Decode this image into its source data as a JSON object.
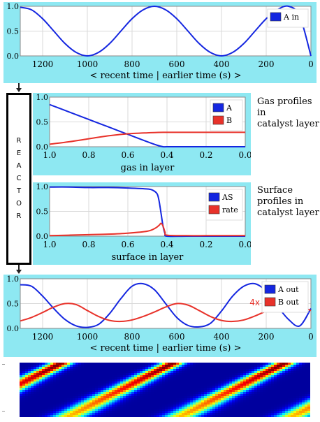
{
  "colors": {
    "panel_bg": "#8ee8f2",
    "blue": "#1426e0",
    "red": "#e8322a",
    "grid": "#d9d9d9"
  },
  "reactor": {
    "letters": [
      "R",
      "E",
      "A",
      "C",
      "T",
      "O",
      "R"
    ]
  },
  "labels": {
    "gas_profiles": [
      "Gas profiles",
      "in",
      "catalyst layer"
    ],
    "surface_profiles": [
      "Surface",
      "profiles in",
      "catalyst layer"
    ],
    "multiplier": "4x"
  },
  "chart_data": [
    {
      "type": "line",
      "id": "inlet",
      "xlabel": "< recent time | earlier time (s) >",
      "xlim": [
        1300,
        0
      ],
      "x_ticks": [
        "1200",
        "1000",
        "800",
        "600",
        "400",
        "200",
        "0"
      ],
      "ylim": [
        0,
        1
      ],
      "y_ticks": [
        "0.0",
        "0.5",
        "1.0"
      ],
      "grid": true,
      "legend": "top-right",
      "series": [
        {
          "name": "A in",
          "color": "blue",
          "x": [
            1300,
            1250,
            1200,
            1150,
            1100,
            1050,
            1000,
            950,
            900,
            850,
            800,
            750,
            700,
            650,
            600,
            550,
            500,
            450,
            400,
            350,
            300,
            250,
            200,
            150,
            100,
            50,
            0
          ],
          "y": [
            0.98,
            0.93,
            0.75,
            0.5,
            0.25,
            0.07,
            0.0,
            0.07,
            0.25,
            0.5,
            0.75,
            0.93,
            1.0,
            0.93,
            0.75,
            0.5,
            0.25,
            0.07,
            0.0,
            0.07,
            0.25,
            0.5,
            0.75,
            0.93,
            1.0,
            0.8,
            0.0
          ]
        }
      ]
    },
    {
      "type": "line",
      "id": "gas",
      "xlabel": "gas in layer",
      "xlim": [
        1.0,
        0.0
      ],
      "x_ticks": [
        "1.0",
        "0.8",
        "0.6",
        "0.4",
        "0.2",
        "0.0"
      ],
      "ylim": [
        0,
        1
      ],
      "y_ticks": [
        "0.0",
        "0.5",
        "1.0"
      ],
      "grid": true,
      "legend": "top-right",
      "series": [
        {
          "name": "A",
          "color": "blue",
          "x": [
            1.0,
            0.9,
            0.8,
            0.7,
            0.6,
            0.5,
            0.45,
            0.42,
            0.4,
            0.3,
            0.2,
            0.1,
            0.0
          ],
          "y": [
            0.85,
            0.7,
            0.55,
            0.4,
            0.25,
            0.1,
            0.03,
            0.0,
            0.0,
            0.0,
            0.0,
            0.0,
            0.0
          ]
        },
        {
          "name": "B",
          "color": "red",
          "x": [
            1.0,
            0.9,
            0.8,
            0.7,
            0.6,
            0.5,
            0.42,
            0.4,
            0.3,
            0.2,
            0.1,
            0.0
          ],
          "y": [
            0.05,
            0.1,
            0.16,
            0.22,
            0.26,
            0.28,
            0.29,
            0.29,
            0.29,
            0.29,
            0.29,
            0.29
          ]
        }
      ]
    },
    {
      "type": "line",
      "id": "surface",
      "xlabel": "surface in layer",
      "xlim": [
        1.0,
        0.0
      ],
      "x_ticks": [
        "1.0",
        "0.8",
        "0.6",
        "0.4",
        "0.2",
        "0.0"
      ],
      "ylim": [
        0,
        1
      ],
      "y_ticks": [
        "0.0",
        "0.5",
        "1.0"
      ],
      "grid": true,
      "legend": "top-right",
      "series": [
        {
          "name": "AS",
          "color": "blue",
          "x": [
            1.0,
            0.9,
            0.8,
            0.7,
            0.6,
            0.5,
            0.47,
            0.45,
            0.44,
            0.43,
            0.42,
            0.41,
            0.4,
            0.3,
            0.2,
            0.1,
            0.0
          ],
          "y": [
            0.99,
            0.99,
            0.98,
            0.98,
            0.97,
            0.95,
            0.92,
            0.85,
            0.7,
            0.45,
            0.2,
            0.05,
            0.0,
            0.0,
            0.0,
            0.0,
            0.0
          ]
        },
        {
          "name": "rate",
          "color": "red",
          "x": [
            1.0,
            0.9,
            0.8,
            0.7,
            0.6,
            0.5,
            0.46,
            0.44,
            0.43,
            0.42,
            0.41,
            0.4,
            0.3,
            0.2,
            0.1,
            0.0
          ],
          "y": [
            0.01,
            0.02,
            0.03,
            0.04,
            0.06,
            0.1,
            0.16,
            0.22,
            0.26,
            0.2,
            0.08,
            0.02,
            0.01,
            0.01,
            0.01,
            0.01
          ]
        }
      ]
    },
    {
      "type": "line",
      "id": "outlet",
      "xlabel": "< recent time | earlier time (s) >",
      "xlim": [
        1300,
        0
      ],
      "x_ticks": [
        "1200",
        "1000",
        "800",
        "600",
        "400",
        "200",
        "0"
      ],
      "ylim": [
        0,
        1
      ],
      "y_ticks": [
        "0.0",
        "0.5",
        "1.0"
      ],
      "grid": true,
      "legend": "top-right",
      "series": [
        {
          "name": "A out",
          "color": "blue",
          "x": [
            1300,
            1250,
            1200,
            1150,
            1100,
            1050,
            1000,
            950,
            900,
            850,
            800,
            750,
            700,
            650,
            600,
            550,
            500,
            450,
            400,
            350,
            300,
            250,
            200,
            150,
            100,
            50,
            0
          ],
          "y": [
            0.88,
            0.85,
            0.65,
            0.4,
            0.18,
            0.05,
            0.02,
            0.08,
            0.3,
            0.6,
            0.85,
            0.9,
            0.78,
            0.5,
            0.22,
            0.06,
            0.03,
            0.1,
            0.35,
            0.65,
            0.85,
            0.9,
            0.75,
            0.45,
            0.18,
            0.05,
            0.4
          ]
        },
        {
          "name": "B out",
          "color": "red",
          "x": [
            1300,
            1250,
            1200,
            1150,
            1100,
            1050,
            1000,
            950,
            900,
            850,
            800,
            750,
            700,
            650,
            600,
            550,
            500,
            450,
            400,
            350,
            300,
            250,
            200,
            150,
            100,
            50,
            0
          ],
          "y": [
            0.15,
            0.22,
            0.32,
            0.43,
            0.5,
            0.48,
            0.36,
            0.24,
            0.16,
            0.14,
            0.17,
            0.24,
            0.33,
            0.43,
            0.5,
            0.47,
            0.36,
            0.24,
            0.16,
            0.14,
            0.17,
            0.25,
            0.35,
            0.45,
            0.5,
            0.45,
            0.36
          ]
        }
      ]
    }
  ]
}
